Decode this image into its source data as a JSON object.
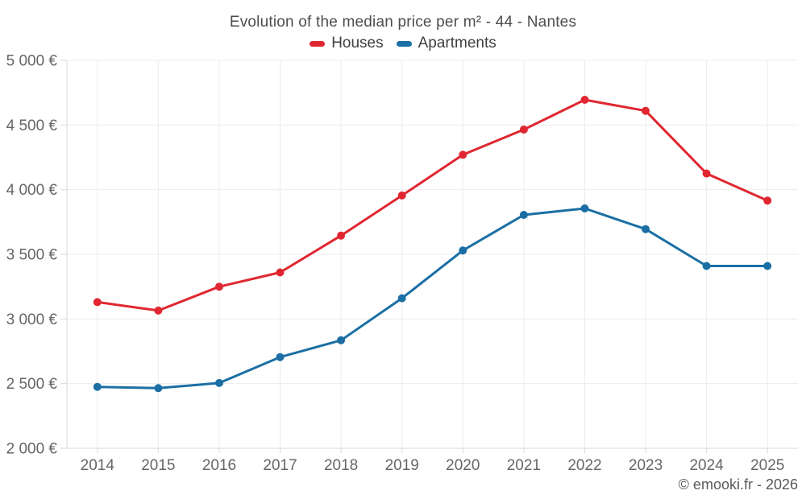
{
  "header": {
    "title": "Evolution of the median price per m² - 44 - Nantes"
  },
  "footer": {
    "credit": "© emooki.fr - 2026"
  },
  "colors": {
    "houses": "#e02731",
    "apartments": "#1b6fa4",
    "gridline": "#ececec",
    "axis": "#d9d9d9",
    "tick_label": "#666666"
  },
  "chart_data": {
    "type": "line",
    "title": "Evolution of the median price per m² - 44 - Nantes",
    "xlabel": "",
    "ylabel": "",
    "categories": [
      "2014",
      "2015",
      "2016",
      "2017",
      "2018",
      "2019",
      "2020",
      "2021",
      "2022",
      "2023",
      "2024",
      "2025"
    ],
    "series": [
      {
        "name": "Houses",
        "color": "#e02731",
        "values": [
          3130,
          3065,
          3250,
          3360,
          3645,
          3955,
          4270,
          4465,
          4695,
          4610,
          4125,
          3915
        ]
      },
      {
        "name": "Apartments",
        "color": "#1b6fa4",
        "values": [
          2475,
          2465,
          2505,
          2705,
          2835,
          3160,
          3530,
          3805,
          3855,
          3695,
          3410,
          3410
        ]
      }
    ],
    "ylim": [
      2000,
      5000
    ],
    "y_tick_step": 500,
    "y_ticks": [
      {
        "value": 2000,
        "label": "2 000 €"
      },
      {
        "value": 2500,
        "label": "2 500 €"
      },
      {
        "value": 3000,
        "label": "3 000 €"
      },
      {
        "value": 3500,
        "label": "3 500 €"
      },
      {
        "value": 4000,
        "label": "4 000 €"
      },
      {
        "value": 4500,
        "label": "4 500 €"
      },
      {
        "value": 5000,
        "label": "5 000 €"
      }
    ],
    "grid": true,
    "legend_position": "top",
    "legend": [
      "Houses",
      "Apartments"
    ]
  }
}
